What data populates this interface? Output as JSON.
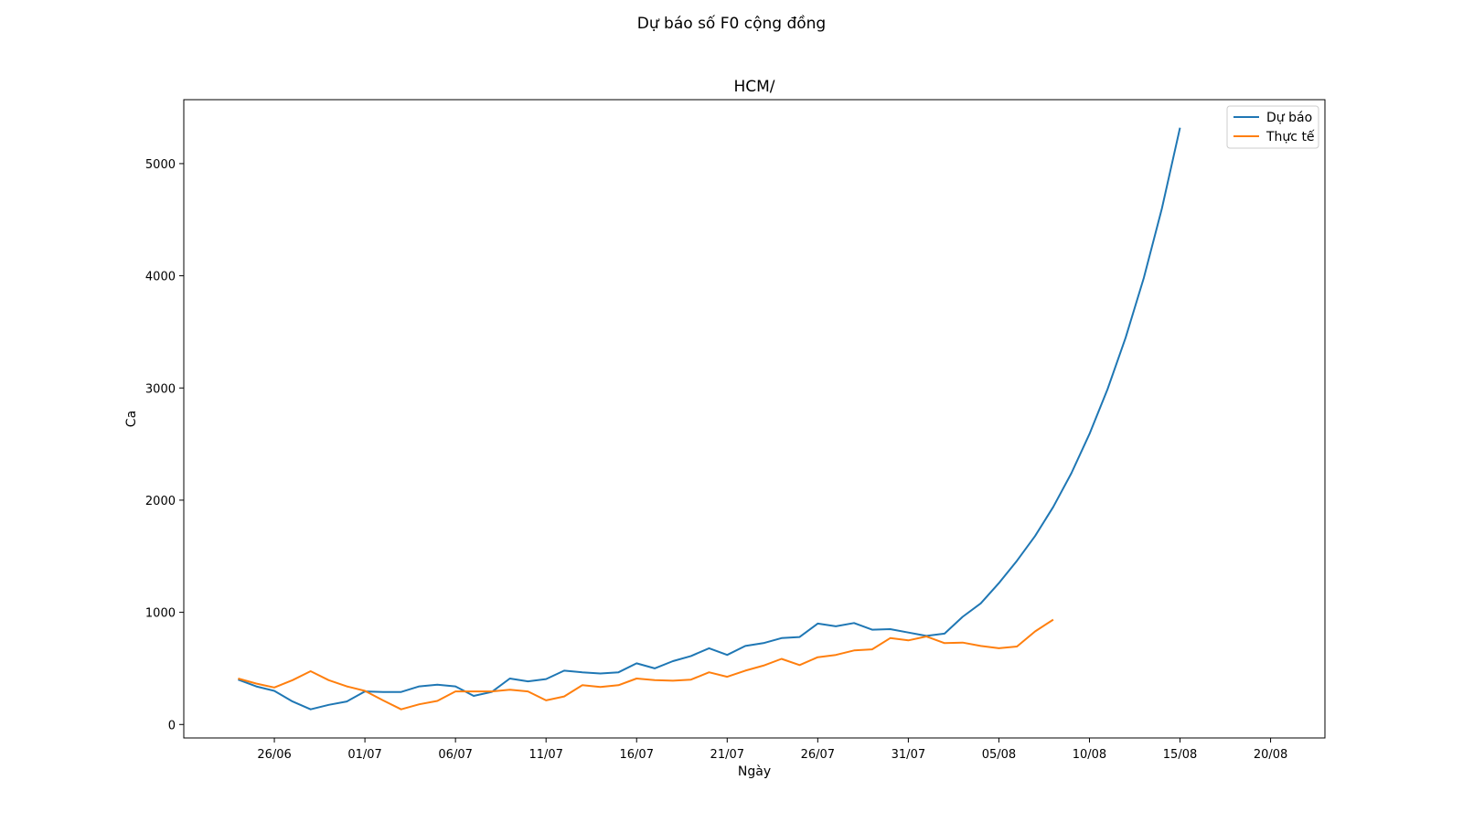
{
  "figure": {
    "suptitle": "Dự báo số F0 cộng đồng"
  },
  "chart_data": {
    "type": "line",
    "title": "HCM/",
    "xlabel": "Ngày",
    "ylabel": "Ca",
    "x_tick_labels": [
      "26/06",
      "01/07",
      "06/07",
      "11/07",
      "16/07",
      "21/07",
      "26/07",
      "31/07",
      "05/08",
      "10/08",
      "15/08",
      "20/08"
    ],
    "y_ticks": [
      0,
      1000,
      2000,
      3000,
      4000,
      5000
    ],
    "ylim": [
      -120,
      5570
    ],
    "xlim": [
      "2021-06-21",
      "2021-08-23"
    ],
    "grid": false,
    "legend_position": "top-right",
    "series": [
      {
        "name": "Dự báo",
        "color": "#1f77b4",
        "x": [
          "2021-06-24",
          "2021-06-25",
          "2021-06-26",
          "2021-06-27",
          "2021-06-28",
          "2021-06-29",
          "2021-06-30",
          "2021-07-01",
          "2021-07-02",
          "2021-07-03",
          "2021-07-04",
          "2021-07-05",
          "2021-07-06",
          "2021-07-07",
          "2021-07-08",
          "2021-07-09",
          "2021-07-10",
          "2021-07-11",
          "2021-07-12",
          "2021-07-13",
          "2021-07-14",
          "2021-07-15",
          "2021-07-16",
          "2021-07-17",
          "2021-07-18",
          "2021-07-19",
          "2021-07-20",
          "2021-07-21",
          "2021-07-22",
          "2021-07-23",
          "2021-07-24",
          "2021-07-25",
          "2021-07-26",
          "2021-07-27",
          "2021-07-28",
          "2021-07-29",
          "2021-07-30",
          "2021-07-31",
          "2021-08-01",
          "2021-08-02",
          "2021-08-03",
          "2021-08-04",
          "2021-08-05",
          "2021-08-06",
          "2021-08-07",
          "2021-08-08",
          "2021-08-09",
          "2021-08-10",
          "2021-08-11",
          "2021-08-12",
          "2021-08-13",
          "2021-08-14",
          "2021-08-15"
        ],
        "values": [
          400,
          340,
          300,
          205,
          135,
          175,
          205,
          295,
          290,
          290,
          340,
          355,
          340,
          255,
          290,
          410,
          385,
          405,
          480,
          465,
          455,
          465,
          545,
          500,
          565,
          610,
          680,
          620,
          700,
          725,
          770,
          780,
          900,
          875,
          905,
          845,
          850,
          820,
          790,
          810,
          960,
          1080,
          1260,
          1460,
          1680,
          1940,
          2240,
          2590,
          2990,
          3450,
          3980,
          4600,
          5320
        ]
      },
      {
        "name": "Thực tế",
        "color": "#ff7f0e",
        "x": [
          "2021-06-24",
          "2021-06-25",
          "2021-06-26",
          "2021-06-27",
          "2021-06-28",
          "2021-06-29",
          "2021-06-30",
          "2021-07-01",
          "2021-07-02",
          "2021-07-03",
          "2021-07-04",
          "2021-07-05",
          "2021-07-06",
          "2021-07-07",
          "2021-07-08",
          "2021-07-09",
          "2021-07-10",
          "2021-07-11",
          "2021-07-12",
          "2021-07-13",
          "2021-07-14",
          "2021-07-15",
          "2021-07-16",
          "2021-07-17",
          "2021-07-18",
          "2021-07-19",
          "2021-07-20",
          "2021-07-21",
          "2021-07-22",
          "2021-07-23",
          "2021-07-24",
          "2021-07-25",
          "2021-07-26",
          "2021-07-27",
          "2021-07-28",
          "2021-07-29",
          "2021-07-30",
          "2021-07-31",
          "2021-08-01",
          "2021-08-02",
          "2021-08-03",
          "2021-08-04",
          "2021-08-05",
          "2021-08-06",
          "2021-08-07",
          "2021-08-08"
        ],
        "values": [
          410,
          365,
          330,
          395,
          475,
          395,
          340,
          300,
          215,
          135,
          180,
          210,
          295,
          295,
          295,
          310,
          295,
          215,
          250,
          350,
          335,
          350,
          410,
          395,
          390,
          400,
          465,
          425,
          480,
          525,
          585,
          530,
          600,
          620,
          660,
          670,
          770,
          750,
          785,
          725,
          730,
          700,
          680,
          695,
          830,
          935
        ]
      }
    ]
  }
}
